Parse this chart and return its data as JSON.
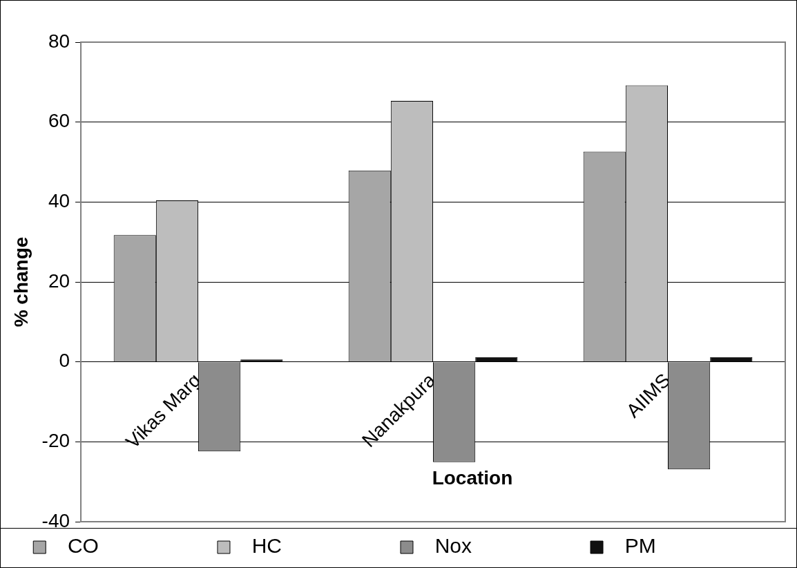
{
  "chart_data": {
    "type": "bar",
    "xlabel": "Location",
    "ylabel": "% change",
    "categories": [
      "Vikas Marg",
      "Nanakpura",
      "AIIMS"
    ],
    "series": [
      {
        "name": "CO",
        "color": "#a6a6a6",
        "values": [
          31.7,
          47.9,
          52.6
        ]
      },
      {
        "name": "HC",
        "color": "#bdbdbd",
        "values": [
          40.4,
          65.3,
          69.2
        ]
      },
      {
        "name": "Nox",
        "color": "#8c8c8c",
        "values": [
          -22.4,
          -25.1,
          -26.9
        ]
      },
      {
        "name": "PM",
        "color": "#111111",
        "values": [
          0.6,
          1.2,
          1.2
        ]
      }
    ],
    "ylim": [
      -40,
      80
    ],
    "yticks": [
      -40,
      -20,
      0,
      20,
      40,
      60,
      80
    ],
    "grid": "y",
    "legend": "bottom"
  }
}
